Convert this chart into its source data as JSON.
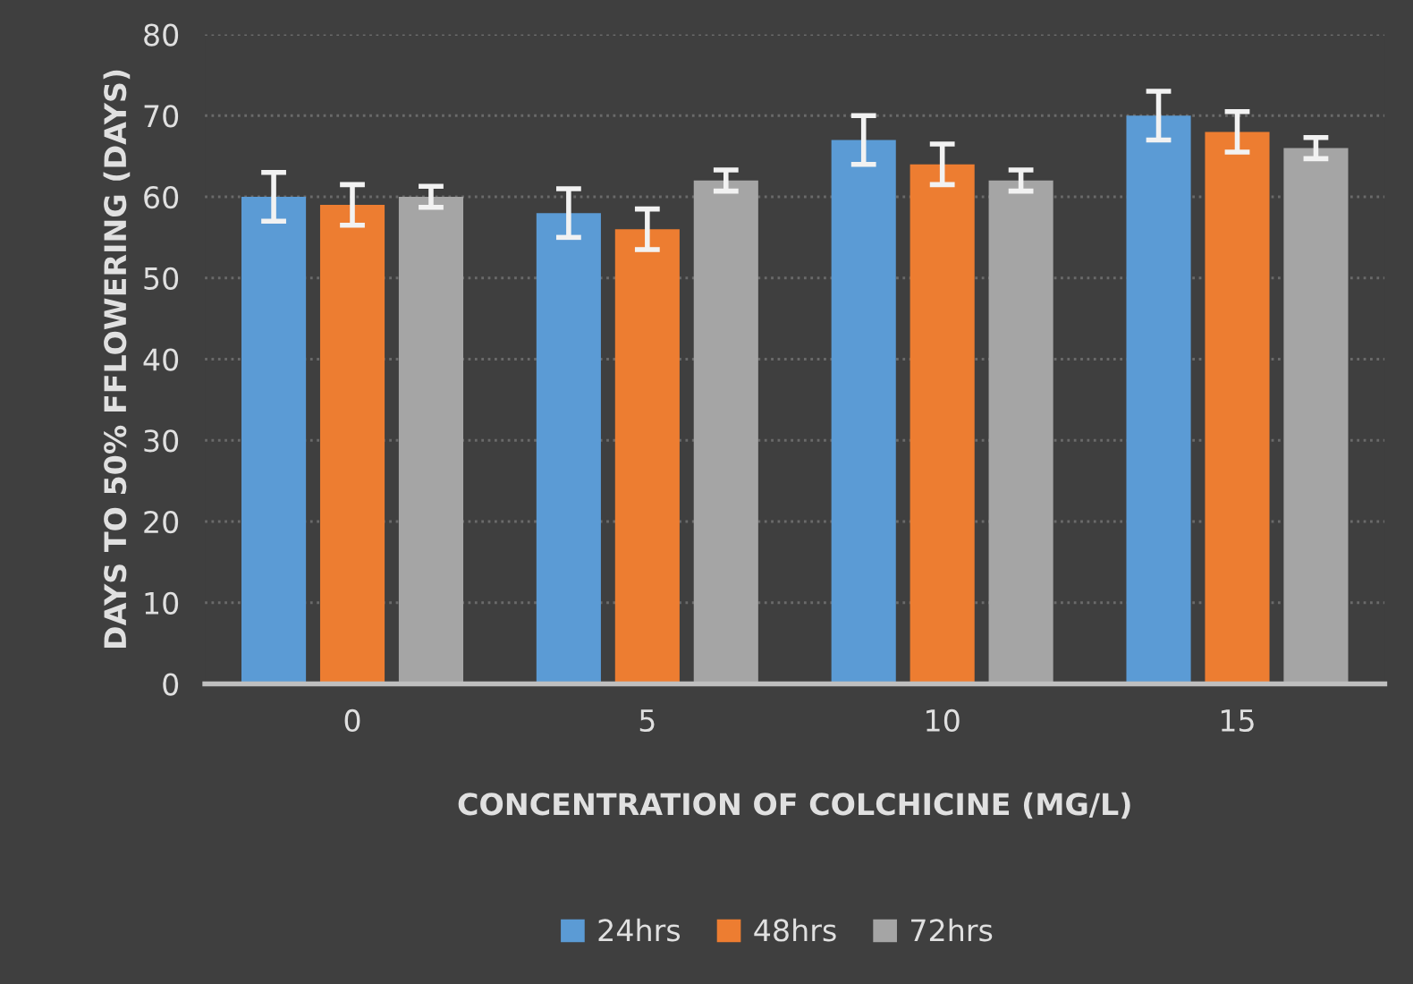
{
  "chart_data": {
    "type": "bar",
    "xlabel": "CONCENTRATION OF COLCHICINE (MG/L)",
    "ylabel": "DAYS TO 50% FFLOWERING (DAYS)",
    "categories": [
      "0",
      "5",
      "10",
      "15"
    ],
    "series": [
      {
        "name": "24hrs",
        "color": "#5b9bd5",
        "values": [
          60,
          58,
          67,
          70
        ],
        "errors": [
          3,
          3,
          3,
          3
        ]
      },
      {
        "name": "48hrs",
        "color": "#ed7d31",
        "values": [
          59,
          56,
          64,
          68
        ],
        "errors": [
          2.5,
          2.5,
          2.5,
          2.5
        ]
      },
      {
        "name": "72hrs",
        "color": "#a5a5a5",
        "values": [
          60,
          62,
          62,
          66
        ],
        "errors": [
          1.3,
          1.3,
          1.3,
          1.3
        ]
      }
    ],
    "ylim": [
      0,
      80
    ],
    "yticks": [
      0,
      10,
      20,
      30,
      40,
      50,
      60,
      70,
      80
    ],
    "grid": "y",
    "legend": "bottom"
  }
}
